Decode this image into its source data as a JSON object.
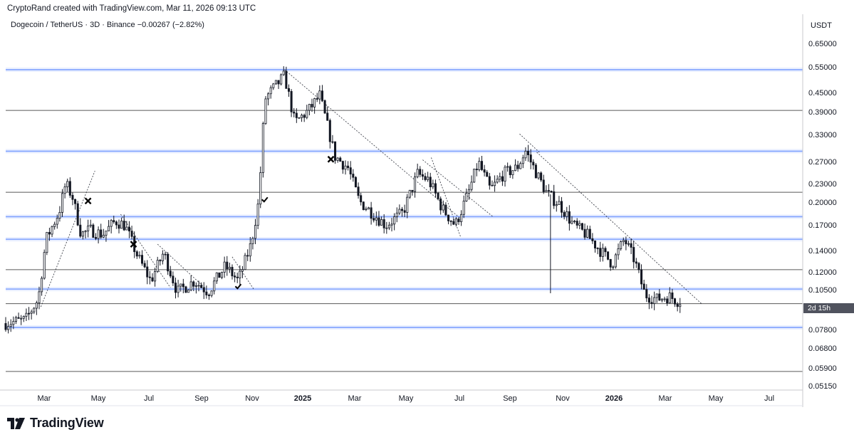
{
  "header": {
    "attribution": "CryptoRand created with TradingView.com, Mar 11, 2026 09:13 UTC",
    "symbol_line": "Dogecoin / TetherUS · 3D · Binance  −0.00267 (−2.82%)",
    "currency": "USDT",
    "countdown": "2d 15h"
  },
  "logo": {
    "text": "TradingView"
  },
  "chart_data": {
    "type": "candlestick",
    "title": "Dogecoin / TetherUS · 3D · Binance",
    "price_change": "−0.00267 (−2.82%)",
    "ylabel": "USDT",
    "y_scale": "log",
    "ylim": [
      0.05,
      0.71
    ],
    "y_ticks": [
      "0.65000",
      "0.55000",
      "0.45000",
      "0.39000",
      "0.33000",
      "0.27000",
      "0.23000",
      "0.20000",
      "0.17000",
      "0.14000",
      "0.12000",
      "0.10500",
      "0.07800",
      "0.06800",
      "0.05900",
      "0.05150"
    ],
    "x_ticks": [
      "Mar",
      "May",
      "Jul",
      "Sep",
      "Nov",
      "2025",
      "Mar",
      "May",
      "Jul",
      "Sep",
      "Nov",
      "2026",
      "Mar",
      "May",
      "Jul"
    ],
    "x_range": [
      "2024-01-15",
      "2026-08-01"
    ],
    "price_path": [
      [
        "2024-01-15",
        0.08
      ],
      [
        "2024-02-10",
        0.082
      ],
      [
        "2024-02-25",
        0.095
      ],
      [
        "2024-03-05",
        0.145
      ],
      [
        "2024-03-20",
        0.175
      ],
      [
        "2024-03-28",
        0.215
      ],
      [
        "2024-04-05",
        0.195
      ],
      [
        "2024-04-15",
        0.15
      ],
      [
        "2024-04-25",
        0.155
      ],
      [
        "2024-05-10",
        0.15
      ],
      [
        "2024-05-25",
        0.165
      ],
      [
        "2024-06-05",
        0.16
      ],
      [
        "2024-06-20",
        0.128
      ],
      [
        "2024-07-05",
        0.108
      ],
      [
        "2024-07-20",
        0.132
      ],
      [
        "2024-08-05",
        0.1
      ],
      [
        "2024-08-25",
        0.108
      ],
      [
        "2024-09-10",
        0.1
      ],
      [
        "2024-09-30",
        0.12
      ],
      [
        "2024-10-15",
        0.108
      ],
      [
        "2024-10-30",
        0.14
      ],
      [
        "2024-11-08",
        0.19
      ],
      [
        "2024-11-15",
        0.39
      ],
      [
        "2024-11-25",
        0.42
      ],
      [
        "2024-12-08",
        0.46
      ],
      [
        "2024-12-20",
        0.33
      ],
      [
        "2025-01-05",
        0.36
      ],
      [
        "2025-01-18",
        0.4
      ],
      [
        "2025-02-05",
        0.26
      ],
      [
        "2025-02-20",
        0.24
      ],
      [
        "2025-03-05",
        0.19
      ],
      [
        "2025-03-20",
        0.175
      ],
      [
        "2025-04-05",
        0.16
      ],
      [
        "2025-04-25",
        0.175
      ],
      [
        "2025-05-12",
        0.23
      ],
      [
        "2025-05-25",
        0.22
      ],
      [
        "2025-06-10",
        0.18
      ],
      [
        "2025-06-25",
        0.16
      ],
      [
        "2025-07-10",
        0.2
      ],
      [
        "2025-07-22",
        0.25
      ],
      [
        "2025-08-05",
        0.205
      ],
      [
        "2025-08-20",
        0.23
      ],
      [
        "2025-09-05",
        0.24
      ],
      [
        "2025-09-15",
        0.27
      ],
      [
        "2025-09-28",
        0.23
      ],
      [
        "2025-10-10",
        0.2
      ],
      [
        "2025-10-25",
        0.185
      ],
      [
        "2025-11-10",
        0.16
      ],
      [
        "2025-11-25",
        0.15
      ],
      [
        "2025-12-10",
        0.135
      ],
      [
        "2025-12-25",
        0.122
      ],
      [
        "2026-01-08",
        0.145
      ],
      [
        "2026-01-20",
        0.125
      ],
      [
        "2026-02-01",
        0.098
      ],
      [
        "2026-02-15",
        0.095
      ],
      [
        "2026-03-01",
        0.097
      ],
      [
        "2026-03-11",
        0.094
      ]
    ],
    "horizontal_levels": [
      {
        "price": 0.48,
        "style": "blue-zone"
      },
      {
        "price": 0.36,
        "style": "line"
      },
      {
        "price": 0.27,
        "style": "blue-zone"
      },
      {
        "price": 0.202,
        "style": "line"
      },
      {
        "price": 0.17,
        "style": "blue-zone"
      },
      {
        "price": 0.145,
        "style": "blue-zone"
      },
      {
        "price": 0.117,
        "style": "line"
      },
      {
        "price": 0.102,
        "style": "blue-zone"
      },
      {
        "price": 0.092,
        "style": "line"
      },
      {
        "price": 0.0778,
        "style": "blue-zone"
      },
      {
        "price": 0.057,
        "style": "line"
      }
    ],
    "trendlines": [
      {
        "from": [
          "2024-02-25",
          0.09
        ],
        "to": [
          "2024-04-28",
          0.235
        ]
      },
      {
        "from": [
          "2024-05-28",
          0.173
        ],
        "to": [
          "2024-07-25",
          0.103
        ]
      },
      {
        "from": [
          "2024-07-10",
          0.14
        ],
        "to": [
          "2024-09-03",
          0.103
        ]
      },
      {
        "from": [
          "2024-10-05",
          0.128
        ],
        "to": [
          "2024-10-30",
          0.102
        ]
      },
      {
        "from": [
          "2024-12-05",
          0.48
        ],
        "to": [
          "2025-06-28",
          0.168
        ]
      },
      {
        "from": [
          "2025-05-15",
          0.254
        ],
        "to": [
          "2025-08-05",
          0.17
        ]
      },
      {
        "from": [
          "2025-05-25",
          0.258
        ],
        "to": [
          "2025-06-28",
          0.148
        ]
      },
      {
        "from": [
          "2025-09-05",
          0.305
        ],
        "to": [
          "2025-09-28",
          0.268
        ]
      },
      {
        "from": [
          "2025-09-25",
          0.268
        ],
        "to": [
          "2026-04-05",
          0.092
        ]
      }
    ],
    "markers": [
      {
        "type": "x",
        "date": "2024-04-20",
        "price": 0.19
      },
      {
        "type": "x",
        "date": "2024-06-12",
        "price": 0.14
      },
      {
        "type": "check",
        "date": "2024-11-12",
        "price": 0.192
      },
      {
        "type": "check",
        "date": "2024-10-12",
        "price": 0.104
      },
      {
        "type": "x",
        "date": "2025-01-28",
        "price": 0.255
      }
    ],
    "spikes": [
      {
        "date": "2025-10-11",
        "low": 0.099
      }
    ],
    "current_price": 0.094
  },
  "colors": {
    "candle": "#131722",
    "blue_zone": "#2962ff",
    "grid_line": "#000000"
  }
}
